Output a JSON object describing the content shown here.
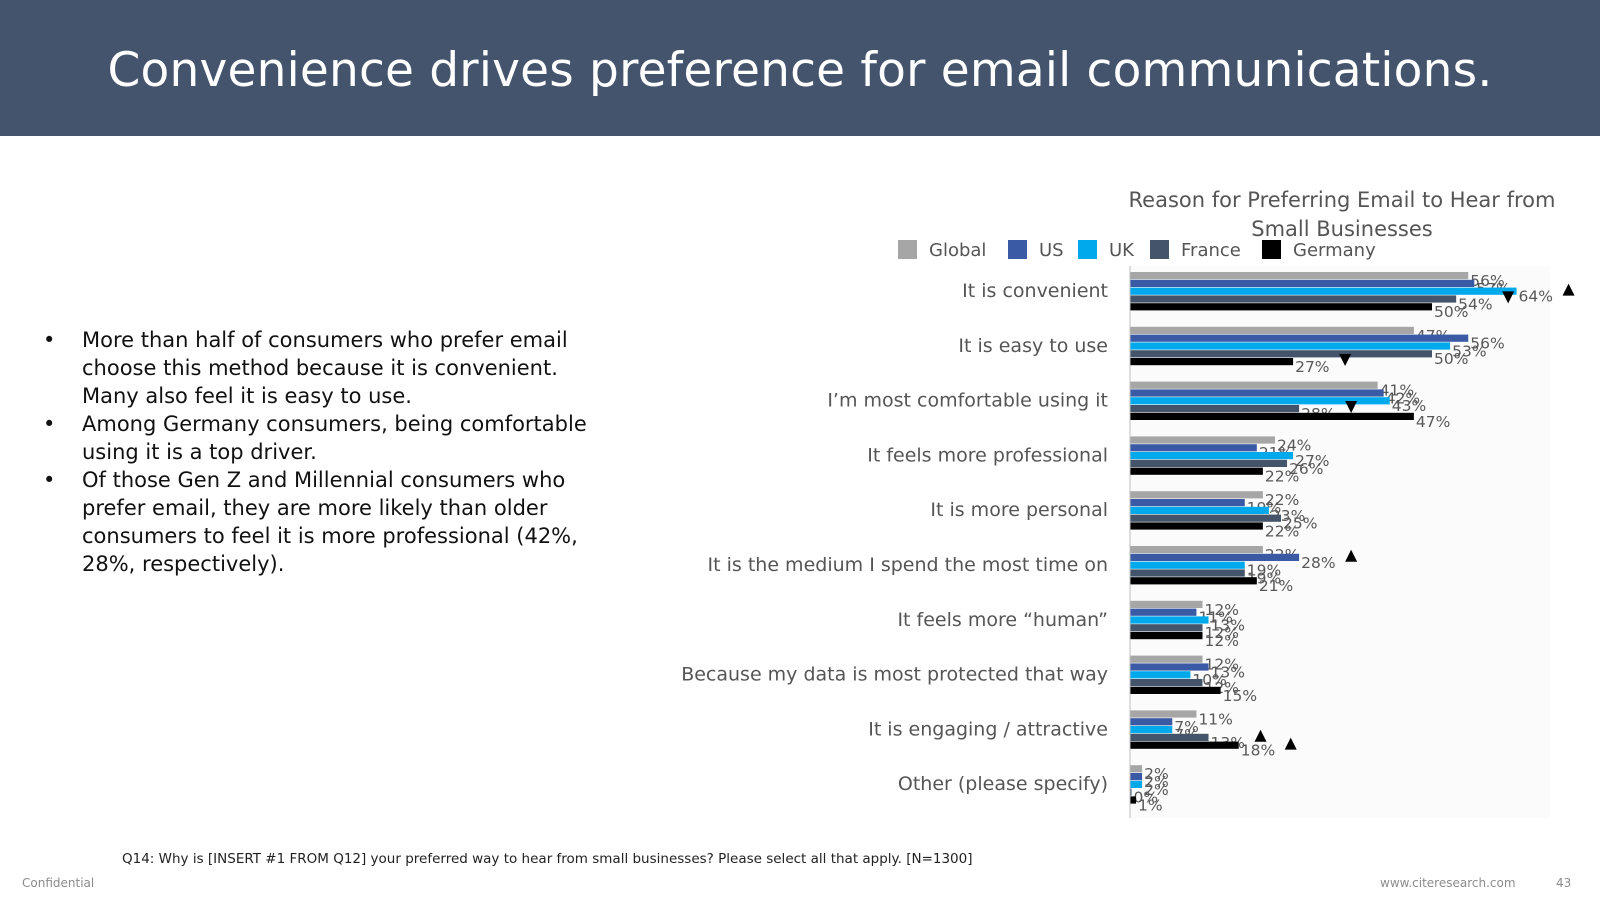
{
  "slide": {
    "title": "Convenience drives preference for email communications.",
    "bullets": [
      "More than half of consumers who prefer email choose this method because it is convenient. Many also feel it is easy to use.",
      "Among Germany consumers, being comfortable using it is a top driver.",
      "Of those Gen Z and Millennial consumers who prefer email, they are more likely than older consumers to feel it is more professional (42%, 28%, respectively)."
    ],
    "bullet_symbol": "•",
    "footnote": "Q14: Why is [INSERT #1 FROM Q12] your preferred way to hear from small businesses? Please select all that apply. [N=1300]",
    "confidential": "Confidential",
    "website": "www.citeresearch.com",
    "page_number": "43"
  },
  "chart_data": {
    "type": "bar",
    "orientation": "horizontal",
    "title": "Reason for Preferring Email to Hear from Small Businesses",
    "value_suffix": "%",
    "xlim": [
      0,
      70
    ],
    "legend_position": "top",
    "categories": [
      "It is convenient",
      "It is easy to use",
      "I’m most comfortable using it",
      "It feels more professional",
      "It is more personal",
      "It is the medium I spend the most time on",
      "It feels more “human”",
      "Because my data is most protected that way",
      "It is engaging / attractive",
      "Other (please specify)"
    ],
    "series": [
      {
        "name": "Global",
        "color": "#a6a6a6",
        "values": [
          56,
          47,
          41,
          24,
          22,
          22,
          12,
          12,
          11,
          2
        ]
      },
      {
        "name": "US",
        "color": "#3a5aa6",
        "values": [
          57,
          56,
          42,
          21,
          19,
          28,
          11,
          13,
          7,
          2
        ]
      },
      {
        "name": "UK",
        "color": "#00a9ec",
        "values": [
          64,
          53,
          43,
          27,
          23,
          19,
          13,
          10,
          7,
          2
        ]
      },
      {
        "name": "France",
        "color": "#44546a",
        "values": [
          54,
          50,
          28,
          26,
          25,
          19,
          12,
          12,
          13,
          0
        ]
      },
      {
        "name": "Germany",
        "color": "#000000",
        "values": [
          50,
          27,
          47,
          22,
          22,
          21,
          12,
          15,
          18,
          1
        ]
      }
    ],
    "significance_markers": [
      {
        "category": "It is convenient",
        "series": "UK",
        "direction": "up"
      },
      {
        "category": "It is convenient",
        "series": "France",
        "direction": "down"
      },
      {
        "category": "It is easy to use",
        "series": "Germany",
        "direction": "down"
      },
      {
        "category": "I’m most comfortable using it",
        "series": "France",
        "direction": "down"
      },
      {
        "category": "It is the medium I spend the most time on",
        "series": "US",
        "direction": "up"
      },
      {
        "category": "It is engaging / attractive",
        "series": "France",
        "direction": "up"
      },
      {
        "category": "It is engaging / attractive",
        "series": "Germany",
        "direction": "up"
      }
    ]
  }
}
